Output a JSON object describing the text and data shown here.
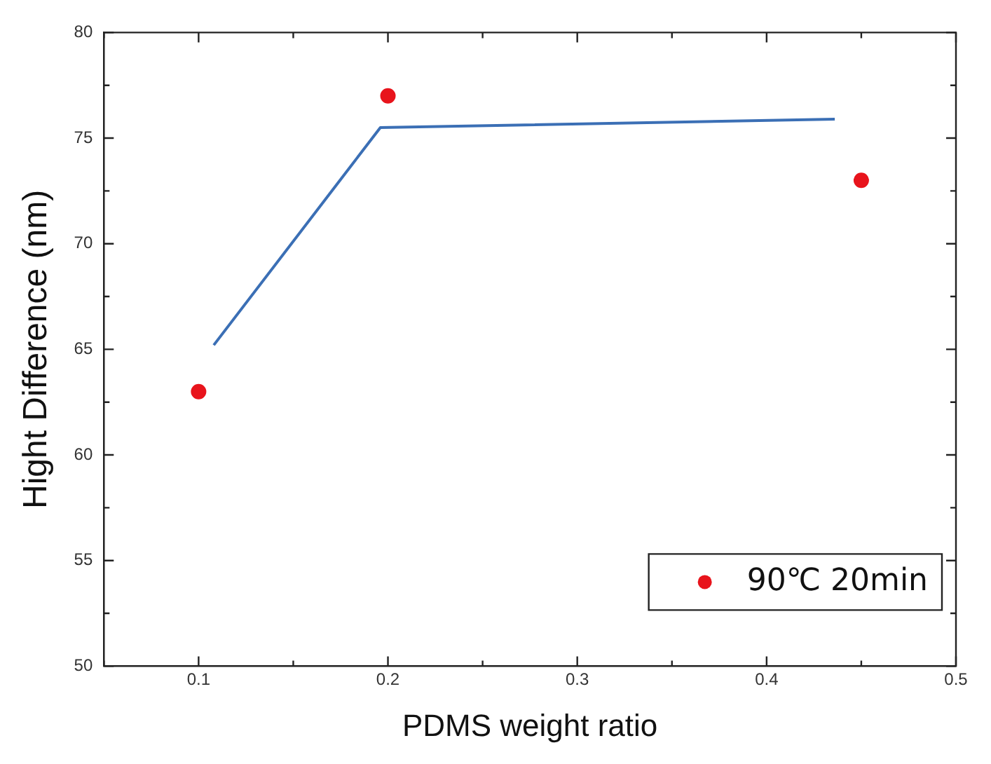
{
  "chart_data": {
    "type": "scatter",
    "xlabel": "PDMS weight ratio",
    "ylabel": "Hight Difference (nm)",
    "xlim": [
      0.05,
      0.5
    ],
    "ylim": [
      50,
      80
    ],
    "xticks": [
      {
        "value": 0.05,
        "label": null
      },
      0.1,
      {
        "value": 0.15,
        "label": null
      },
      0.2,
      {
        "value": 0.25,
        "label": null
      },
      0.3,
      {
        "value": 0.35,
        "label": null
      },
      0.4,
      {
        "value": 0.45,
        "label": null
      },
      0.5
    ],
    "yticks": [
      50,
      {
        "value": 52.5,
        "label": null
      },
      55,
      {
        "value": 57.5,
        "label": null
      },
      60,
      {
        "value": 62.5,
        "label": null
      },
      65,
      {
        "value": 67.5,
        "label": null
      },
      70,
      {
        "value": 72.5,
        "label": null
      },
      75,
      {
        "value": 77.5,
        "label": null
      },
      80
    ],
    "grid": false,
    "legend": "bottom right",
    "marker": "circle",
    "series": [
      {
        "type": "line",
        "color": "#3b6fb5",
        "x": [
          0.108,
          0.196,
          0.436
        ],
        "values": [
          65.2,
          75.5,
          75.9
        ],
        "marker": "none",
        "line_style": "solid"
      },
      {
        "name": "90℃ 20min",
        "color": "#e8141c",
        "x": [
          0.1,
          0.2,
          0.45
        ],
        "values": [
          63,
          77,
          73
        ]
      }
    ]
  }
}
